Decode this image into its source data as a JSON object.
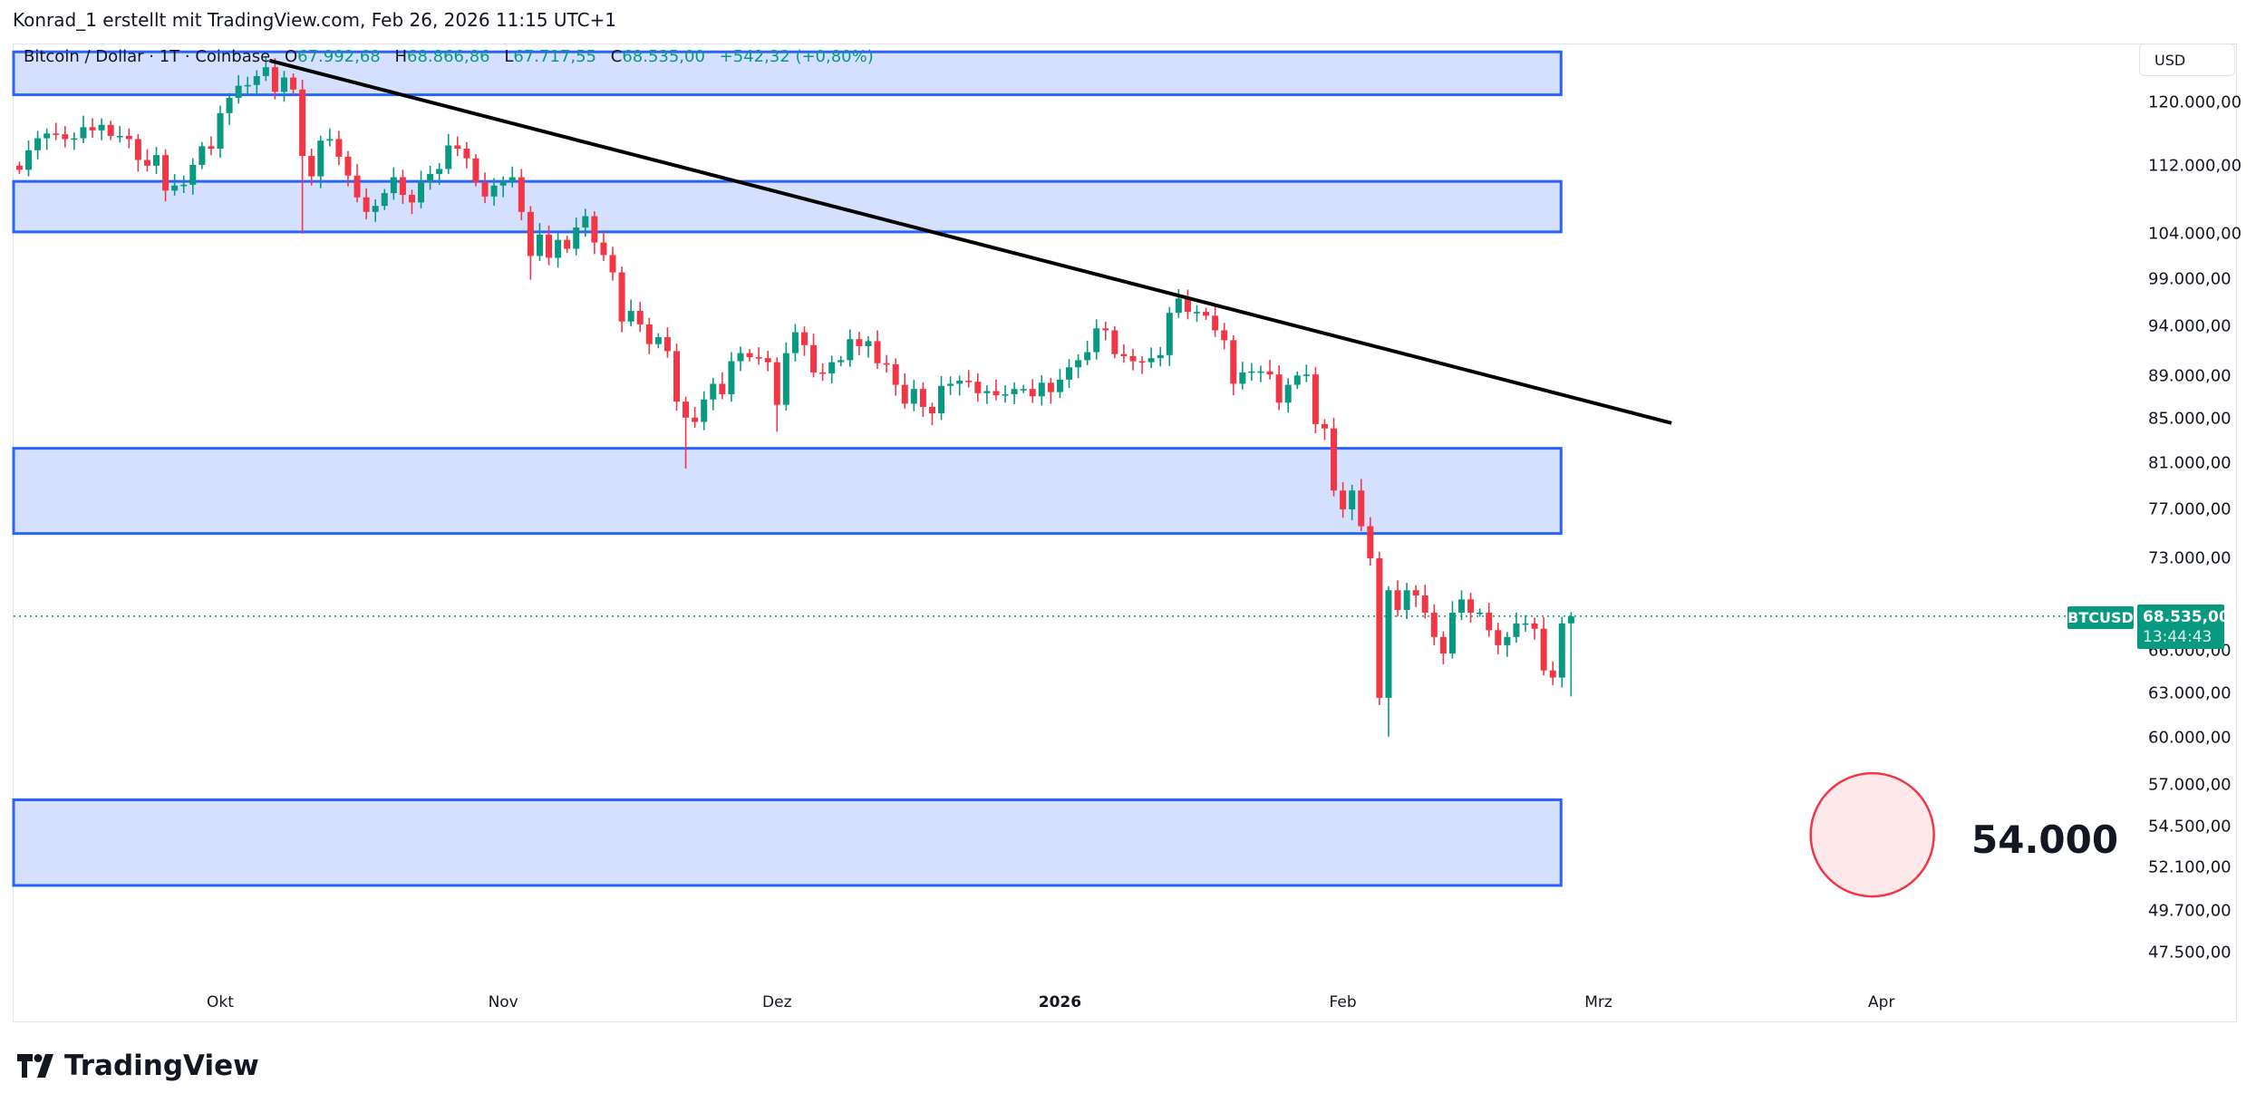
{
  "caption": "Konrad_1 erstellt mit TradingView.com, Feb 26, 2026 11:15 UTC+1",
  "legend": {
    "symbol": "Bitcoin / Dollar · 1T · Coinbase",
    "o_label": "O",
    "o": "67.992,68",
    "h_label": "H",
    "h": "68.866,86",
    "l_label": "L",
    "l": "67.717,55",
    "c_label": "C",
    "c": "68.535,00",
    "change": "+542,32 (+0,80%)"
  },
  "currency_button": "USD",
  "price_tag": {
    "symbol": "BTCUSD",
    "price": "68.535,00",
    "countdown": "13:44:43"
  },
  "annotation": {
    "label": "54.000",
    "price": 54000,
    "day_from_oct1": 181
  },
  "brand": "TradingView",
  "colors": {
    "up": "#089981",
    "down": "#f23645",
    "zone_fill": "#d4e0fd",
    "zone_border": "#2962ff",
    "trend": "#000000",
    "circle_fill": "#fde9ea",
    "circle_stroke": "#f23645"
  },
  "chart_data": {
    "type": "candlestick",
    "title": "Bitcoin / Dollar · 1T · Coinbase",
    "scale": "log",
    "start_date": "2025-09-09",
    "start_day_from_oct1": -22,
    "ylim": [
      45500,
      131000
    ],
    "y_ticks": [
      {
        "v": 120000,
        "label": "120.000,00"
      },
      {
        "v": 112000,
        "label": "112.000,00"
      },
      {
        "v": 104000,
        "label": "104.000,00"
      },
      {
        "v": 99000,
        "label": "99.000,00"
      },
      {
        "v": 94000,
        "label": "94.000,00"
      },
      {
        "v": 89000,
        "label": "89.000,00"
      },
      {
        "v": 85000,
        "label": "85.000,00"
      },
      {
        "v": 81000,
        "label": "81.000,00"
      },
      {
        "v": 77000,
        "label": "77.000,00"
      },
      {
        "v": 73000,
        "label": "73.000,00"
      },
      {
        "v": 66000,
        "label": "66.000,00"
      },
      {
        "v": 63000,
        "label": "63.000,00"
      },
      {
        "v": 60000,
        "label": "60.000,00"
      },
      {
        "v": 57000,
        "label": "57.000,00"
      },
      {
        "v": 54500,
        "label": "54.500,00"
      },
      {
        "v": 52100,
        "label": "52.100,00"
      },
      {
        "v": 49700,
        "label": "49.700,00"
      },
      {
        "v": 47500,
        "label": "47.500,00"
      }
    ],
    "x_ticks": [
      {
        "day": 0,
        "label": "Okt",
        "bold": false
      },
      {
        "day": 31,
        "label": "Nov",
        "bold": false
      },
      {
        "day": 61,
        "label": "Dez",
        "bold": false
      },
      {
        "day": 92,
        "label": "2026",
        "bold": true
      },
      {
        "day": 123,
        "label": "Feb",
        "bold": false
      },
      {
        "day": 151,
        "label": "Mrz",
        "bold": false
      },
      {
        "day": 182,
        "label": "Apr",
        "bold": false
      }
    ],
    "first_open": 112000,
    "closes": [
      111500,
      113900,
      115400,
      116000,
      115900,
      115300,
      115400,
      116800,
      116400,
      117100,
      115700,
      115700,
      115300,
      112700,
      112000,
      113300,
      109000,
      109600,
      109700,
      112100,
      114400,
      114100,
      118600,
      120600,
      122200,
      122300,
      123500,
      124700,
      121400,
      123300,
      121700,
      113200,
      110700,
      115100,
      115300,
      113100,
      110800,
      108200,
      106500,
      107200,
      108700,
      110600,
      108500,
      107600,
      110100,
      111000,
      111600,
      114500,
      114100,
      112900,
      110000,
      108300,
      109600,
      110100,
      110600,
      106500,
      101500,
      103900,
      101300,
      103300,
      102300,
      104700,
      106000,
      103000,
      101600,
      99700,
      94500,
      95600,
      94200,
      92200,
      92900,
      91500,
      86600,
      85100,
      84700,
      86800,
      88300,
      87300,
      90500,
      91300,
      90900,
      90800,
      90400,
      86300,
      91300,
      93400,
      92100,
      89400,
      89300,
      90400,
      90600,
      92700,
      92000,
      92500,
      90300,
      90200,
      88200,
      86400,
      87800,
      86100,
      85500,
      88100,
      88300,
      88600,
      88500,
      87400,
      87600,
      87200,
      87300,
      87800,
      87800,
      87100,
      88400,
      87500,
      88700,
      89900,
      90600,
      91400,
      93800,
      93600,
      91200,
      91000,
      90500,
      90400,
      90800,
      91100,
      95400,
      96900,
      95500,
      95500,
      95100,
      93600,
      92600,
      88300,
      89400,
      89500,
      89500,
      89200,
      86500,
      88200,
      89100,
      89200,
      84500,
      84100,
      78600,
      77000,
      78600,
      75600,
      73000,
      62700,
      70500,
      69000,
      70500,
      70100,
      68800,
      67000,
      65800,
      68800,
      69800,
      68800,
      68800,
      67500,
      66400,
      67000,
      68000,
      68000,
      67600,
      64600,
      64100,
      68000,
      68535
    ],
    "wick_pct": 0.009,
    "extremes": [
      {
        "day": 5,
        "high": 126200
      },
      {
        "day": 9,
        "low": 104000
      },
      {
        "day": 34,
        "low": 98900
      },
      {
        "day": 51,
        "low": 80500
      },
      {
        "day": 61,
        "low": 83800
      },
      {
        "day": 78,
        "low": 84400
      },
      {
        "day": 105,
        "high": 97900
      },
      {
        "day": 127,
        "low": 62200
      },
      {
        "day": 128,
        "low": 60100
      },
      {
        "day": 148,
        "low": 62800
      },
      {
        "day": 149,
        "high": 69900
      }
    ],
    "zones": [
      {
        "top": 126800,
        "bottom": 121000,
        "end_day": 146.9
      },
      {
        "top": 110100,
        "bottom": 104200,
        "end_day": 146.9
      },
      {
        "top": 82300,
        "bottom": 75000,
        "end_day": 146.9
      },
      {
        "top": 56100,
        "bottom": 51100,
        "end_day": 146.9
      }
    ],
    "trendline": {
      "from": {
        "day": 5.4,
        "price": 125600
      },
      "to": {
        "day": 159,
        "price": 84600
      }
    },
    "last_price": 68535
  }
}
